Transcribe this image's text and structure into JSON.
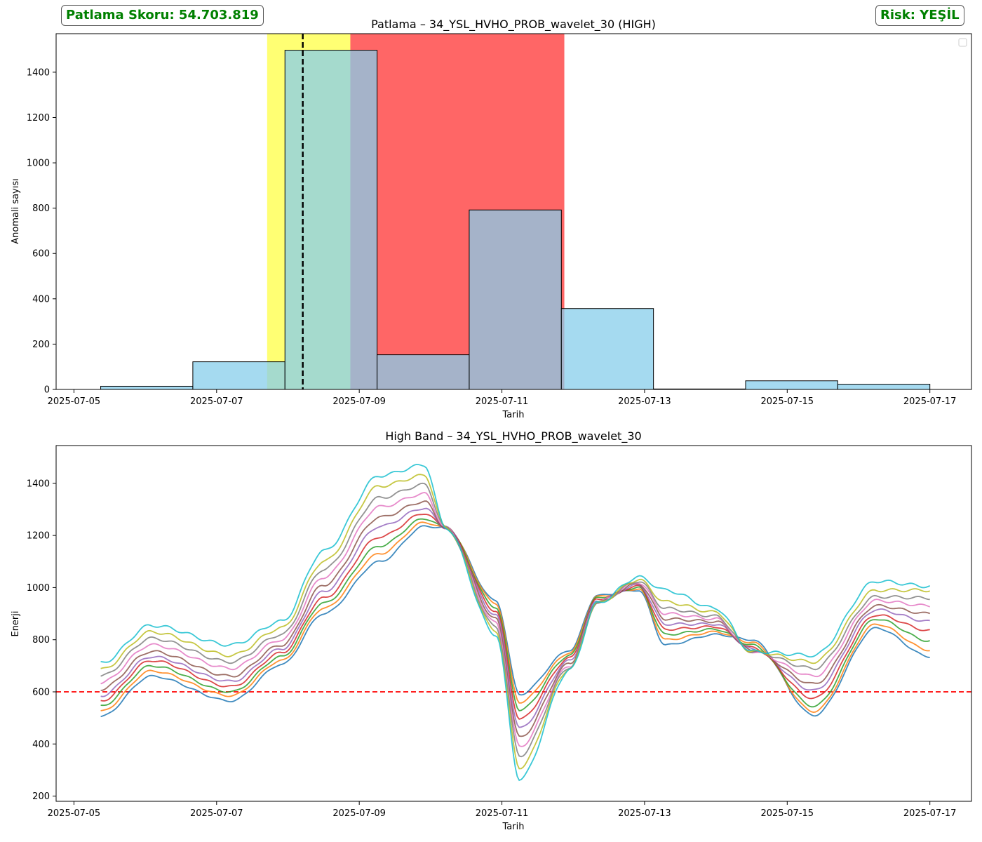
{
  "header": {
    "score_label": "Patlama Skoru: 54.703.819",
    "risk_label": "Risk: YEŞİL",
    "badge_color": "#008000"
  },
  "chart_data": [
    {
      "type": "bar",
      "title": "Patlama – 34_YSL_HVHO_PROB_wavelet_30 (HIGH)",
      "xlabel": "Tarih",
      "ylabel": "Anomali sayısı",
      "xlim": [
        "2025-07-04T18:00",
        "2025-07-17T14:00"
      ],
      "ylim": [
        0,
        1570
      ],
      "x_ticks": [
        "2025-07-05",
        "2025-07-07",
        "2025-07-09",
        "2025-07-11",
        "2025-07-13",
        "2025-07-15",
        "2025-07-17"
      ],
      "y_ticks": [
        0,
        200,
        400,
        600,
        800,
        1000,
        1200,
        1400
      ],
      "bar_color": "#87ceeb",
      "bars": [
        {
          "start": "2025-07-05T09:00",
          "end": "2025-07-06T16:00",
          "value": 14
        },
        {
          "start": "2025-07-06T16:00",
          "end": "2025-07-07T23:00",
          "value": 122
        },
        {
          "start": "2025-07-07T23:00",
          "end": "2025-07-09T06:00",
          "value": 1497
        },
        {
          "start": "2025-07-09T06:00",
          "end": "2025-07-10T13:00",
          "value": 153
        },
        {
          "start": "2025-07-10T13:00",
          "end": "2025-07-11T20:00",
          "value": 792
        },
        {
          "start": "2025-07-11T20:00",
          "end": "2025-07-13T03:00",
          "value": 357
        },
        {
          "start": "2025-07-13T03:00",
          "end": "2025-07-14T10:00",
          "value": 2
        },
        {
          "start": "2025-07-14T10:00",
          "end": "2025-07-15T17:00",
          "value": 38
        },
        {
          "start": "2025-07-15T17:00",
          "end": "2025-07-17T00:00",
          "value": 23
        }
      ],
      "spans": [
        {
          "start": "2025-07-07T17:00",
          "end": "2025-07-08T21:00",
          "color": "#ffff00",
          "alpha": 0.55
        },
        {
          "start": "2025-07-08T21:00",
          "end": "2025-07-11T21:00",
          "color": "#ff0000",
          "alpha": 0.6
        }
      ],
      "vline": {
        "x": "2025-07-08T05:00",
        "color": "#000000",
        "style": "dashed"
      },
      "legend": "top-right (empty)"
    },
    {
      "type": "line",
      "title": "High Band – 34_YSL_HVHO_PROB_wavelet_30",
      "xlabel": "Tarih",
      "ylabel": "Enerji",
      "xlim": [
        "2025-07-04T18:00",
        "2025-07-17T14:00"
      ],
      "ylim": [
        180,
        1545
      ],
      "x_ticks": [
        "2025-07-05",
        "2025-07-07",
        "2025-07-09",
        "2025-07-11",
        "2025-07-13",
        "2025-07-15",
        "2025-07-17"
      ],
      "y_ticks": [
        200,
        400,
        600,
        800,
        1000,
        1200,
        1400
      ],
      "hline": {
        "y": 600,
        "color": "#ff0000",
        "style": "dashed"
      },
      "x_start": "2025-07-05T09:00",
      "x_end": "2025-07-17T00:00",
      "envelope_x": [
        "2025-07-05T09:00",
        "2025-07-06T02:00",
        "2025-07-07T05:00",
        "2025-07-07T22:00",
        "2025-07-08T12:00",
        "2025-07-09T07:00",
        "2025-07-09T22:00",
        "2025-07-10T05:00",
        "2025-07-10T22:00",
        "2025-07-11T06:00",
        "2025-07-11T23:00",
        "2025-07-12T08:00",
        "2025-07-12T22:00",
        "2025-07-13T07:00",
        "2025-07-14T00:00",
        "2025-07-14T12:00",
        "2025-07-15T09:00",
        "2025-07-16T06:00",
        "2025-07-17T00:00"
      ],
      "series": [
        {
          "values": [
            505,
            660,
            565,
            705,
            900,
            1100,
            1235,
            1230,
            950,
            590,
            760,
            970,
            990,
            780,
            820,
            800,
            510,
            845,
            735
          ],
          "color": "#1f77b4"
        },
        {
          "values": [
            525,
            680,
            585,
            720,
            920,
            1130,
            1250,
            1230,
            940,
            560,
            750,
            965,
            995,
            800,
            830,
            790,
            525,
            860,
            760
          ],
          "color": "#ff7f0e"
        },
        {
          "values": [
            545,
            700,
            600,
            735,
            940,
            1160,
            1265,
            1230,
            925,
            530,
            740,
            960,
            1000,
            820,
            840,
            780,
            545,
            880,
            795
          ],
          "color": "#2ca02c"
        },
        {
          "values": [
            565,
            720,
            620,
            750,
            960,
            1195,
            1285,
            1230,
            910,
            495,
            730,
            955,
            1005,
            840,
            850,
            770,
            575,
            895,
            835
          ],
          "color": "#d62728"
        },
        {
          "values": [
            585,
            735,
            640,
            765,
            985,
            1235,
            1305,
            1230,
            895,
            460,
            720,
            950,
            1010,
            860,
            860,
            765,
            605,
            915,
            870
          ],
          "color": "#9467bd"
        },
        {
          "values": [
            610,
            755,
            660,
            780,
            1010,
            1270,
            1330,
            1230,
            880,
            425,
            710,
            945,
            1015,
            880,
            870,
            760,
            630,
            930,
            900
          ],
          "color": "#8c564b"
        },
        {
          "values": [
            635,
            780,
            690,
            800,
            1040,
            1310,
            1360,
            1230,
            865,
            390,
            700,
            945,
            1020,
            900,
            880,
            755,
            660,
            950,
            930
          ],
          "color": "#e377c2"
        },
        {
          "values": [
            660,
            805,
            715,
            820,
            1070,
            1345,
            1395,
            1230,
            850,
            355,
            695,
            940,
            1025,
            920,
            890,
            755,
            690,
            965,
            960
          ],
          "color": "#7f7f7f"
        },
        {
          "values": [
            685,
            830,
            740,
            845,
            1100,
            1390,
            1430,
            1230,
            835,
            310,
            690,
            940,
            1030,
            945,
            905,
            755,
            715,
            990,
            990
          ],
          "color": "#bcbd22"
        },
        {
          "values": [
            710,
            855,
            780,
            870,
            1140,
            1430,
            1470,
            1230,
            820,
            265,
            685,
            940,
            1040,
            990,
            920,
            755,
            740,
            1025,
            1005
          ],
          "color": "#17becf"
        }
      ]
    }
  ]
}
